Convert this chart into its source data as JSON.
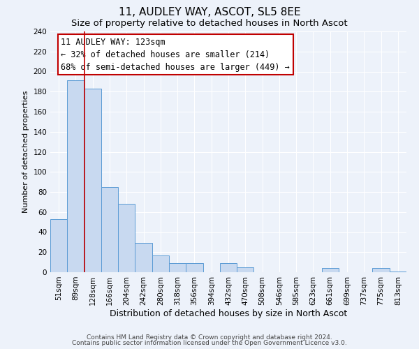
{
  "title": "11, AUDLEY WAY, ASCOT, SL5 8EE",
  "subtitle": "Size of property relative to detached houses in North Ascot",
  "xlabel": "Distribution of detached houses by size in North Ascot",
  "ylabel": "Number of detached properties",
  "bar_labels": [
    "51sqm",
    "89sqm",
    "128sqm",
    "166sqm",
    "204sqm",
    "242sqm",
    "280sqm",
    "318sqm",
    "356sqm",
    "394sqm",
    "432sqm",
    "470sqm",
    "508sqm",
    "546sqm",
    "585sqm",
    "623sqm",
    "661sqm",
    "699sqm",
    "737sqm",
    "775sqm",
    "813sqm"
  ],
  "bar_values": [
    53,
    191,
    183,
    85,
    68,
    29,
    17,
    9,
    9,
    0,
    9,
    5,
    0,
    0,
    0,
    0,
    4,
    0,
    0,
    4,
    1
  ],
  "bar_color": "#c8d9f0",
  "bar_edge_color": "#5b9bd5",
  "vline_color": "#c00000",
  "annotation_line1": "11 AUDLEY WAY: 123sqm",
  "annotation_line2": "← 32% of detached houses are smaller (214)",
  "annotation_line3": "68% of semi-detached houses are larger (449) →",
  "box_edge_color": "#c00000",
  "box_face_color": "#ffffff",
  "ylim": [
    0,
    240
  ],
  "yticks": [
    0,
    20,
    40,
    60,
    80,
    100,
    120,
    140,
    160,
    180,
    200,
    220,
    240
  ],
  "footer_line1": "Contains HM Land Registry data © Crown copyright and database right 2024.",
  "footer_line2": "Contains public sector information licensed under the Open Government Licence v3.0.",
  "bg_color": "#edf2fa",
  "title_fontsize": 11,
  "subtitle_fontsize": 9.5,
  "xlabel_fontsize": 9,
  "ylabel_fontsize": 8,
  "tick_fontsize": 7.5,
  "footer_fontsize": 6.5,
  "annotation_fontsize": 8.5
}
